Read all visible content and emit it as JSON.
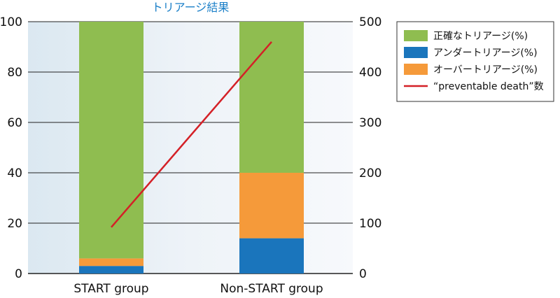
{
  "chart_data": {
    "type": "bar",
    "title": "トリアージ結果",
    "categories": [
      "START group",
      "Non-START group"
    ],
    "stacked": true,
    "ylim": [
      0,
      100
    ],
    "y_ticks": [
      0,
      20,
      40,
      60,
      80,
      100
    ],
    "y2lim": [
      0,
      500
    ],
    "y2_ticks": [
      0,
      100,
      200,
      300,
      400,
      500
    ],
    "grid": true,
    "legend_position": "top-right",
    "series": [
      {
        "name": "アンダートリアージ(%)",
        "values": [
          3,
          14
        ],
        "color": "#1a75bc",
        "axis": "left",
        "kind": "bar"
      },
      {
        "name": "オーバートリアージ(%)",
        "values": [
          3,
          26
        ],
        "color": "#f59a3a",
        "axis": "left",
        "kind": "bar"
      },
      {
        "name": "正確なトリアージ(%)",
        "values": [
          94,
          60
        ],
        "color": "#8fbd50",
        "axis": "left",
        "kind": "bar"
      },
      {
        "name": "“preventable death”数",
        "values": [
          92,
          460
        ],
        "color": "#d42027",
        "axis": "right",
        "kind": "line"
      }
    ],
    "legend_order": [
      2,
      0,
      1,
      3
    ]
  }
}
